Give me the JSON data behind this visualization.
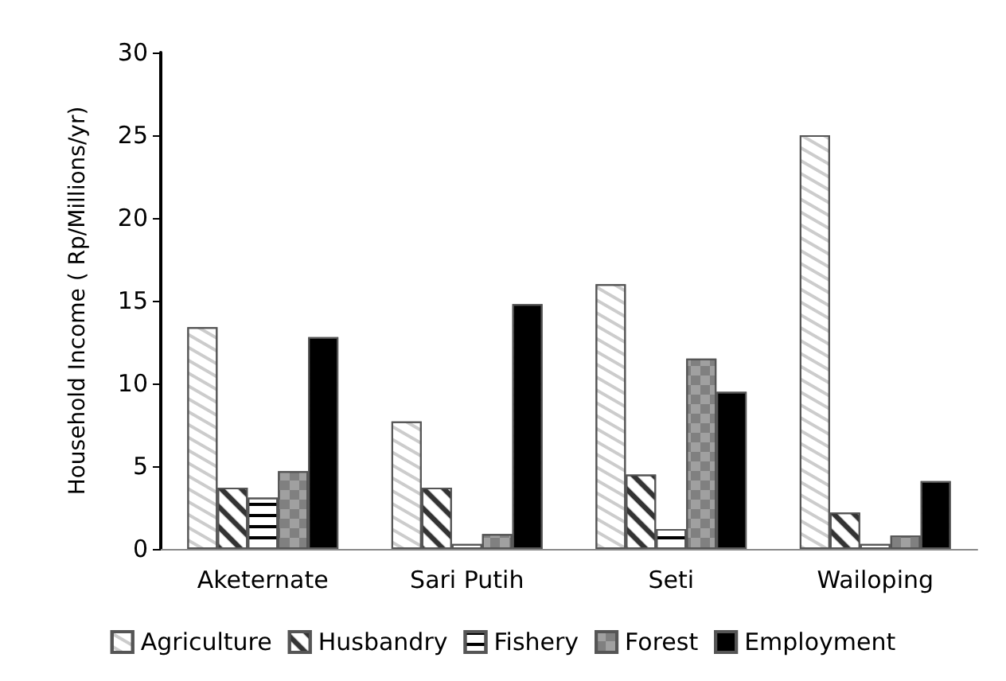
{
  "chart_data": {
    "type": "bar",
    "ylabel": "Household Income ( Rp/Millions/yr)",
    "categories": [
      "Aketernate",
      "Sari Putih",
      "Seti",
      "Wailoping"
    ],
    "series": [
      {
        "name": "Agriculture",
        "color": "#ffffff",
        "values": [
          13.4,
          7.7,
          16,
          25
        ]
      },
      {
        "name": "Husbandry",
        "color": "#ffffff",
        "values": [
          3.7,
          3.7,
          4.5,
          2.2
        ]
      },
      {
        "name": "Fishery",
        "color": "#ffffff",
        "values": [
          3.1,
          0.3,
          1.2,
          0.3
        ]
      },
      {
        "name": "Forest",
        "color": "#a0a0a0",
        "values": [
          4.7,
          0.9,
          11.5,
          0.8
        ]
      },
      {
        "name": "Employment",
        "color": "#000000",
        "values": [
          12.8,
          14.8,
          9.5,
          4.1
        ]
      }
    ],
    "ylim": [
      0,
      30
    ],
    "yticks": [
      0,
      5,
      10,
      15,
      20,
      25,
      30
    ],
    "grid": false,
    "legend": "bottom"
  }
}
